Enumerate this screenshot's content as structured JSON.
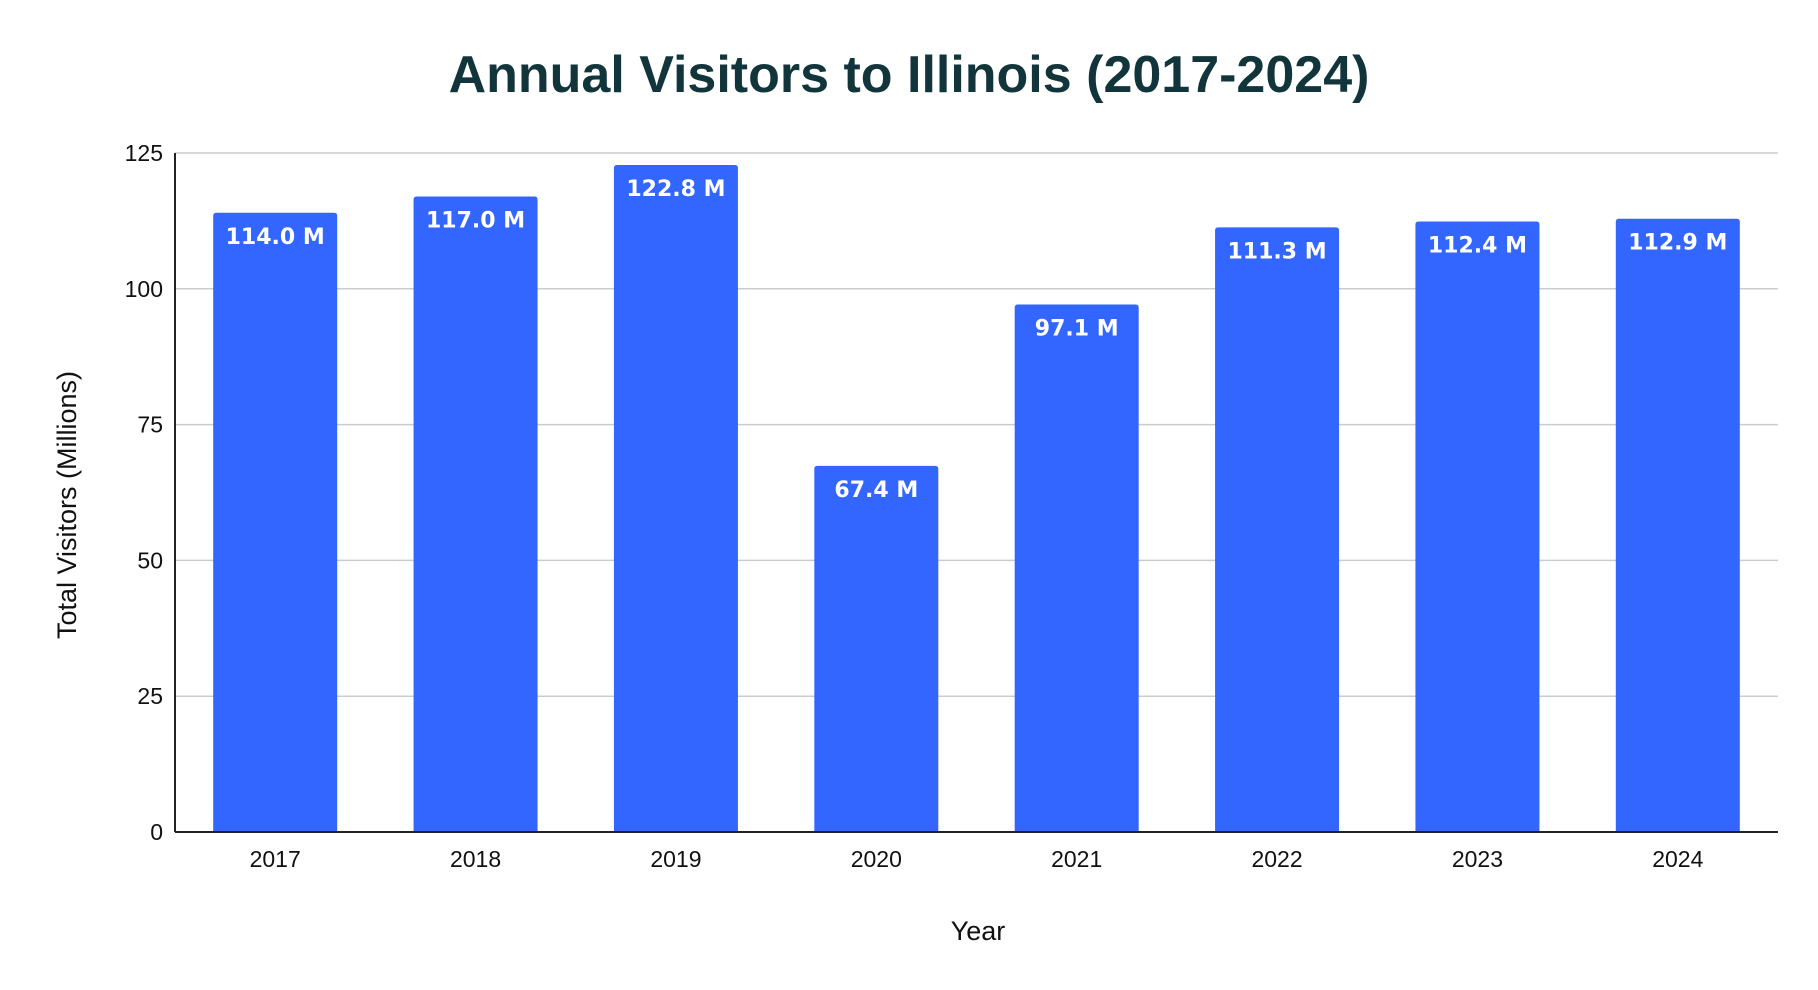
{
  "chart_data": {
    "type": "bar",
    "title": "Annual Visitors to Illinois (2017-2024)",
    "xlabel": "Year",
    "ylabel": "Total Visitors (Millions)",
    "categories": [
      "2017",
      "2018",
      "2019",
      "2020",
      "2021",
      "2022",
      "2023",
      "2024"
    ],
    "values": [
      114.0,
      117.0,
      122.8,
      67.4,
      97.1,
      111.3,
      112.4,
      112.9
    ],
    "data_labels": [
      "114.0 M",
      "117.0 M",
      "122.8 M",
      "67.4 M",
      "97.1 M",
      "111.3 M",
      "112.4 M",
      "112.9 M"
    ],
    "ylim": [
      0,
      125
    ],
    "yticks": [
      0,
      25,
      50,
      75,
      100,
      125
    ],
    "grid": true,
    "legend": "none",
    "bar_color": "#3366ff"
  }
}
